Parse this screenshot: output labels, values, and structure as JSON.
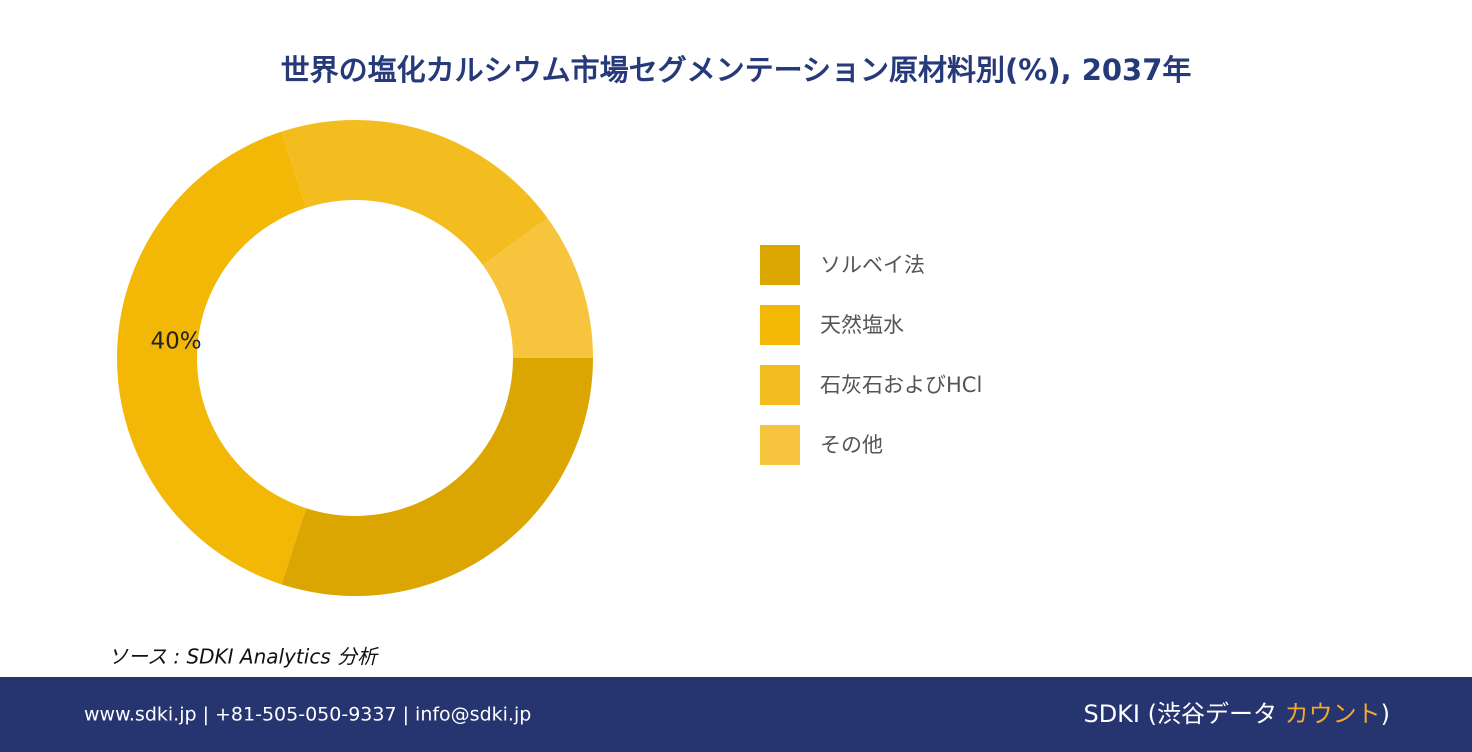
{
  "chart_data": {
    "type": "donut",
    "title": "世界の塩化カルシウム市場セグメンテーション原材料別(%), 2037年",
    "categories": [
      "ソルベイ法",
      "天然塩水",
      "石灰石およびHCl",
      "その他"
    ],
    "values": [
      30,
      40,
      20,
      10
    ],
    "value_labels": [
      null,
      "40%",
      null,
      null
    ],
    "colors": [
      "#dba502",
      "#f3b705",
      "#f4bd1f",
      "#f6c53d"
    ],
    "legend": "right"
  },
  "source": "ソース : SDKI Analytics  分析",
  "footer": {
    "contact": "www.sdki.jp | +81-505-050-9337 | info@sdki.jp",
    "brand": "SDKI (渋谷データ ",
    "brand_highlight": "カウント",
    "brand_end": ")"
  }
}
